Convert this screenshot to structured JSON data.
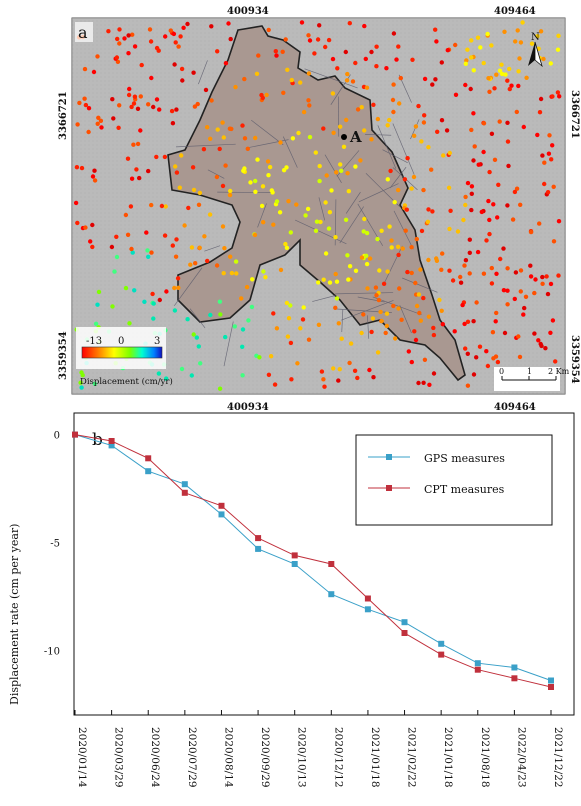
{
  "map_panel": {
    "label": "a",
    "coord_top_left": "400934",
    "coord_top_right": "409464",
    "coord_bottom_left": "400934",
    "coord_bottom_right": "409464",
    "coord_left_upper": "3366721",
    "coord_left_lower": "3359354",
    "coord_right_upper": "3366721",
    "coord_right_lower": "3359354",
    "north_label": "N",
    "point_label": "A",
    "colorbar": {
      "min_label": "-13",
      "mid_label": "0",
      "max_label": "3",
      "title": "Displacement (cm/yr)",
      "colors": [
        "#ff0000",
        "#ff7a00",
        "#ffff00",
        "#7cff00",
        "#00ffd0",
        "#0080ff",
        "#1010c0"
      ]
    },
    "scale_bar": {
      "tick0": "0",
      "tick1": "1",
      "tick2": "2 Km"
    }
  },
  "chart_data": {
    "type": "line",
    "panel_label": "b",
    "ylabel": "Displacement rate (cm per year)",
    "xlabel": "",
    "categories": [
      "2020/01/14",
      "2020/03/29",
      "2020/06/24",
      "2020/07/29",
      "2020/08/14",
      "2020/09/29",
      "2020/10/13",
      "2020/12/12",
      "2021/01/18",
      "2021/02/22",
      "2021/01/18",
      "2021/08/18",
      "2022/04/23",
      "2021/12/22"
    ],
    "yticks": [
      "0",
      "-5",
      "-10"
    ],
    "ylim": [
      -13,
      1
    ],
    "series": [
      {
        "name": "GPS measures",
        "color": "#3aa0c8",
        "marker": "square",
        "values": [
          0,
          -0.5,
          -1.7,
          -2.3,
          -3.7,
          -5.3,
          -6.0,
          -7.4,
          -8.1,
          -8.7,
          -9.7,
          -10.6,
          -10.8,
          -11.4
        ]
      },
      {
        "name": "CPT measures",
        "color": "#c0303c",
        "marker": "square",
        "values": [
          0,
          -0.3,
          -1.1,
          -2.7,
          -3.3,
          -4.8,
          -5.6,
          -6.0,
          -7.6,
          -9.2,
          -10.2,
          -10.9,
          -11.3,
          -11.7
        ]
      }
    ],
    "legend_position": "top-right"
  }
}
